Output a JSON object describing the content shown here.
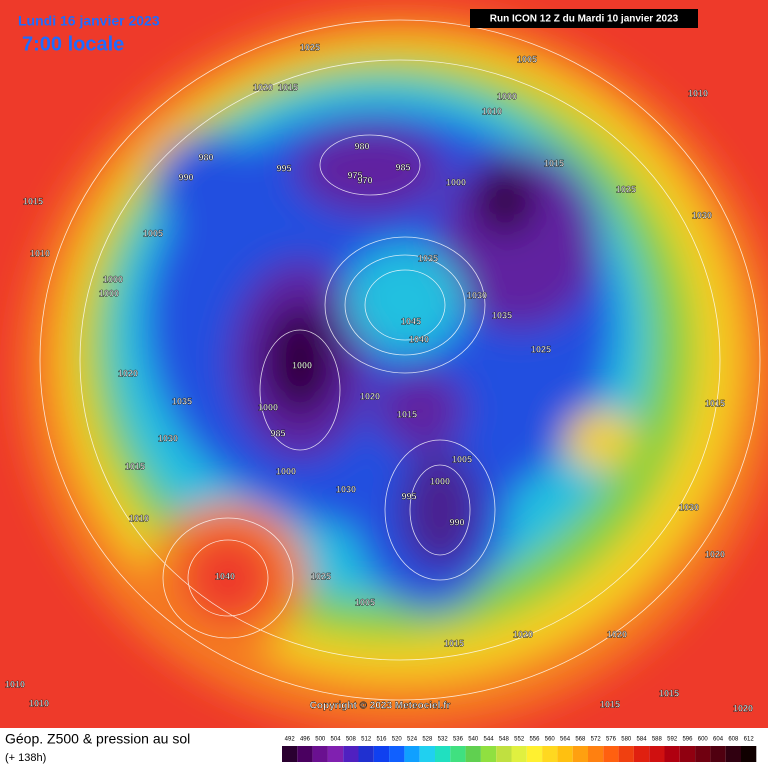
{
  "header": {
    "date": "Lundi 16 janvier 2023",
    "time": "7:00 locale",
    "run": "Run ICON 12 Z du Mardi 10 janvier 2023"
  },
  "pressure_labels": [
    1025,
    1005,
    1020,
    1015,
    1000,
    1010,
    1010,
    980,
    985,
    975,
    970,
    980,
    990,
    995,
    1000,
    1015,
    1025,
    1030,
    1015,
    1005,
    1010,
    1000,
    1000,
    1035,
    1045,
    1040,
    1030,
    1035,
    1025,
    1000,
    1020,
    1035,
    1000,
    985,
    1020,
    1015,
    1030,
    1015,
    1000,
    1005,
    1000,
    995,
    990,
    1030,
    1010,
    1040,
    1025,
    1005,
    1015,
    1020,
    1020,
    1020,
    1030,
    1015,
    1010,
    1010,
    1015,
    1020,
    1015
  ],
  "copyright": "Copyright © 2023 Meteociel.fr",
  "footer": {
    "title": "Géop. Z500 & pression au sol",
    "lead": "(+ 138h)"
  },
  "legend": {
    "values": [
      492,
      496,
      500,
      504,
      508,
      512,
      516,
      520,
      524,
      528,
      532,
      536,
      540,
      544,
      548,
      552,
      556,
      560,
      564,
      568,
      572,
      576,
      580,
      584,
      588,
      592,
      596,
      600,
      604,
      608,
      612
    ],
    "colors": [
      "#2a0030",
      "#4a0060",
      "#6a1090",
      "#8020b0",
      "#5020c0",
      "#2030d0",
      "#1040f0",
      "#1060ff",
      "#10a0ff",
      "#20d0f0",
      "#20e0c0",
      "#40e080",
      "#60d050",
      "#90e040",
      "#c0e040",
      "#e0f040",
      "#fff030",
      "#ffd820",
      "#ffc010",
      "#ffa010",
      "#ff8010",
      "#ff6010",
      "#f04010",
      "#e02010",
      "#d01010",
      "#b00010",
      "#900010",
      "#700010",
      "#500010",
      "#300010",
      "#100000"
    ]
  }
}
